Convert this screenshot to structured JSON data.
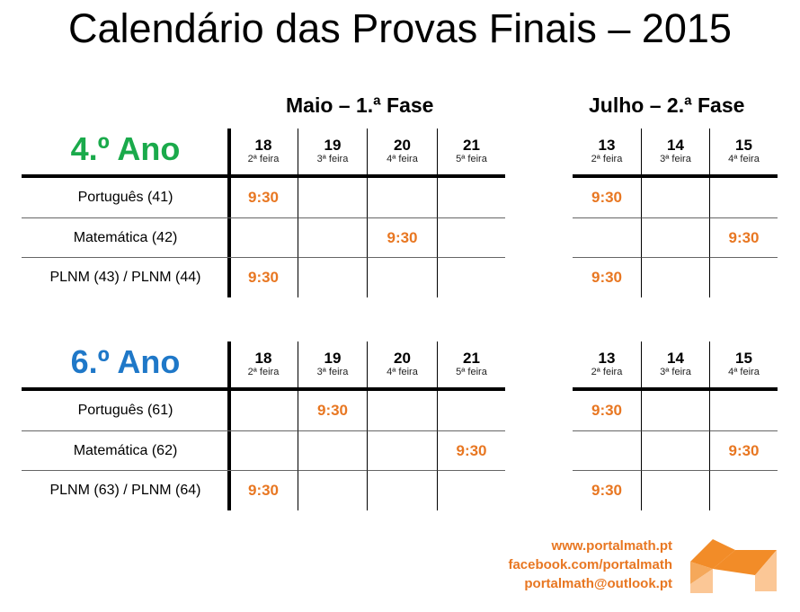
{
  "title": "Calendário das Provas Finais – 2015",
  "phases": {
    "maio": "Maio – 1.ª Fase",
    "julho": "Julho – 2.ª Fase"
  },
  "maio_days": [
    {
      "d": "18",
      "w": "2ª feira"
    },
    {
      "d": "19",
      "w": "3ª feira"
    },
    {
      "d": "20",
      "w": "4ª feira"
    },
    {
      "d": "21",
      "w": "5ª feira"
    }
  ],
  "julho_days": [
    {
      "d": "13",
      "w": "2ª feira"
    },
    {
      "d": "14",
      "w": "3ª feira"
    },
    {
      "d": "15",
      "w": "4ª feira"
    }
  ],
  "sections": [
    {
      "ano": "4.º Ano",
      "color": "#1aaa4b",
      "rows": [
        {
          "label": "Português (41)",
          "maio": [
            "9:30",
            "",
            "",
            ""
          ],
          "julho": [
            "9:30",
            "",
            ""
          ]
        },
        {
          "label": "Matemática (42)",
          "maio": [
            "",
            "",
            "9:30",
            ""
          ],
          "julho": [
            "",
            "",
            "9:30"
          ]
        },
        {
          "label": "PLNM (43) / PLNM (44)",
          "maio": [
            "9:30",
            "",
            "",
            ""
          ],
          "julho": [
            "9:30",
            "",
            ""
          ]
        }
      ]
    },
    {
      "ano": "6.º Ano",
      "color": "#1f78c8",
      "rows": [
        {
          "label": "Português (61)",
          "maio": [
            "",
            "9:30",
            "",
            ""
          ],
          "julho": [
            "9:30",
            "",
            ""
          ]
        },
        {
          "label": "Matemática (62)",
          "maio": [
            "",
            "",
            "",
            "9:30"
          ],
          "julho": [
            "",
            "",
            "9:30"
          ]
        },
        {
          "label": "PLNM (63) / PLNM (64)",
          "maio": [
            "9:30",
            "",
            "",
            ""
          ],
          "julho": [
            "9:30",
            "",
            ""
          ]
        }
      ]
    }
  ],
  "footer": {
    "site": "www.portalmath.pt",
    "facebook": "facebook.com/portalmath",
    "email": "portalmath@outlook.pt"
  },
  "colors": {
    "time": "#e87722",
    "logo": "#f28c28"
  }
}
